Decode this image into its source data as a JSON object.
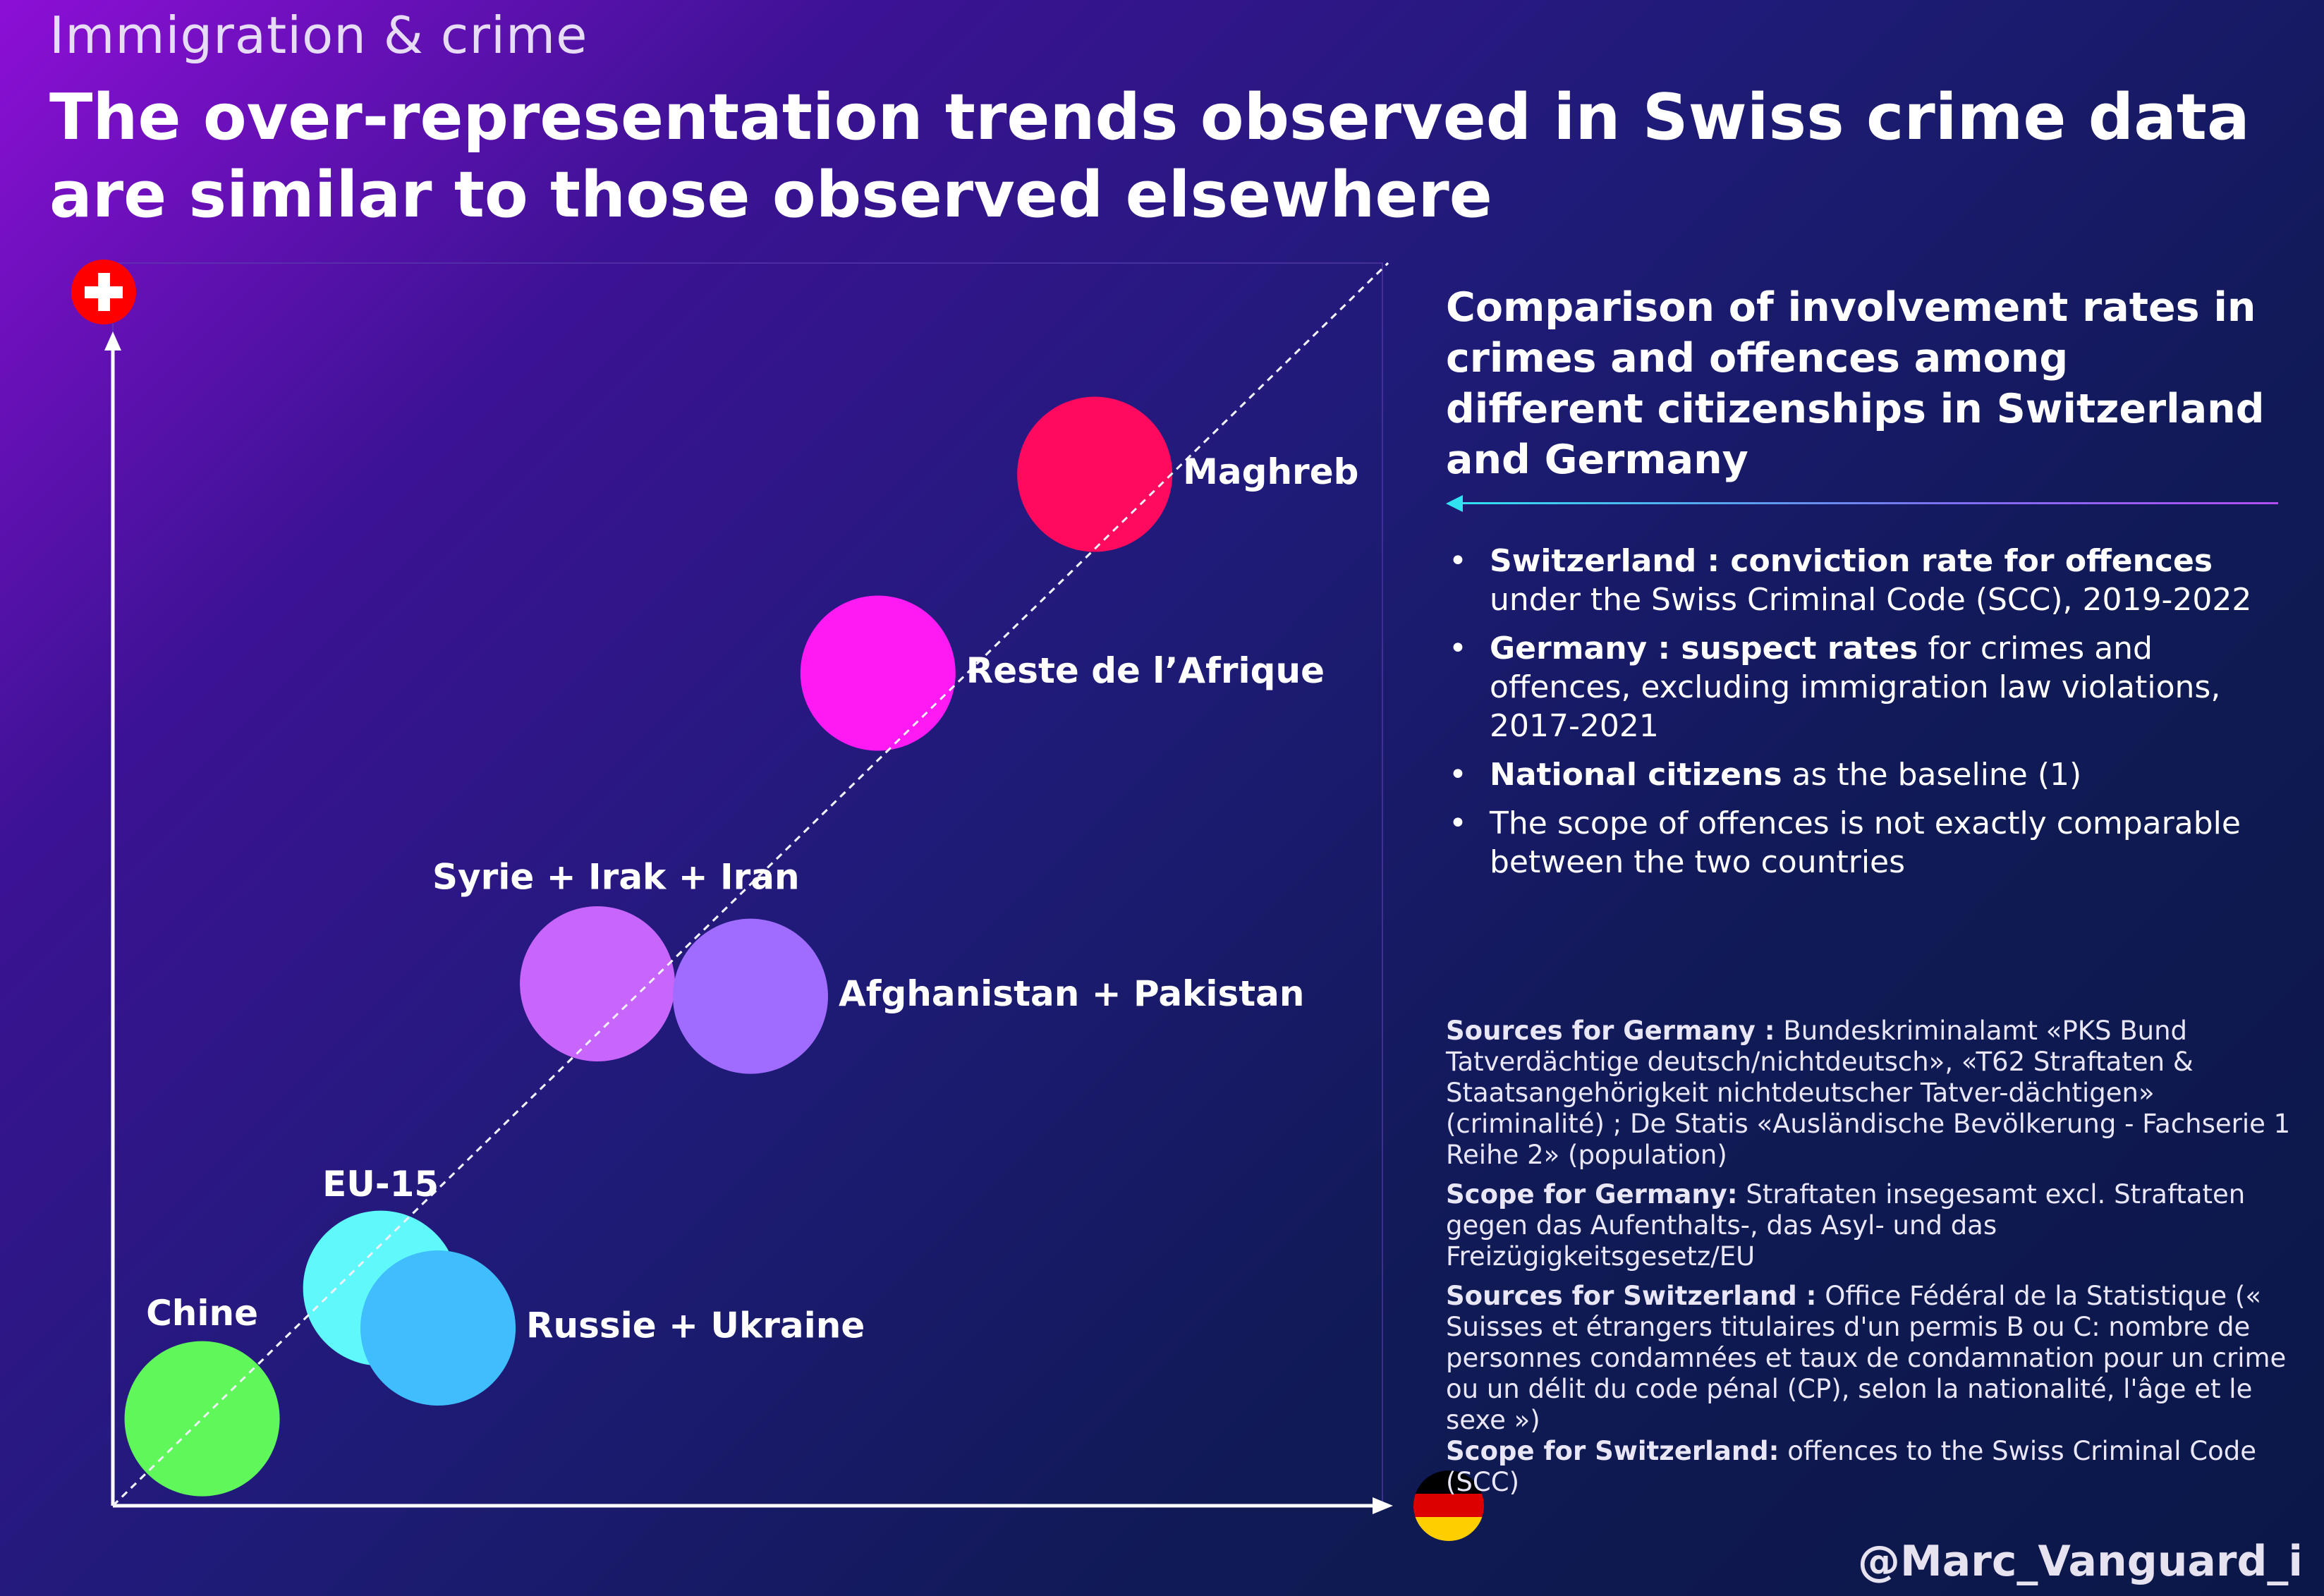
{
  "header": {
    "kicker": "Immigration & crime",
    "headline": "The over-representation trends observed in Swiss crime data are similar to those observed elsewhere"
  },
  "panel": {
    "title": "Comparison of involvement rates in crimes and offences among different citizenships in Switzerland and Germany",
    "bullets": [
      {
        "bold": "Switzerland :  conviction rate for offences",
        "text": " under the Swiss Criminal Code (SCC), 2019-2022"
      },
      {
        "bold": "Germany : suspect rates",
        "text": " for crimes and offences, excluding immigration law violations, 2017-2021"
      },
      {
        "bold": "National citizens",
        "text": " as the baseline (1)"
      },
      {
        "bold": "",
        "text": "The scope of offences is not exactly comparable between the two countries"
      }
    ]
  },
  "sources": [
    {
      "bold": "Sources for Germany :",
      "text": " Bundeskriminalamt «PKS Bund Tatverdächtige deutsch/nichtdeutsch», «T62 Straftaten & Staatsangehörigkeit nichtdeutscher Tatver-dächtigen» (criminalité) ; De Statis «Ausländische Bevölkerung - Fachserie 1 Reihe 2» (population)"
    },
    {
      "bold": "Scope for Germany:",
      "text": " Straftaten insegesamt excl. Straftaten gegen das Aufenthalts-, das Asyl- und das Freizügigkeitsgesetz/EU"
    },
    {
      "bold": "Sources  for Switzerland :",
      "text": " Office Fédéral de la Statistique (« Suisses et étrangers titulaires d'un permis B ou C: nombre de personnes condamnées et taux de condamnation pour un crime ou un délit du code pénal (CP), selon la nationalité, l'âge et le sexe »)"
    },
    {
      "bold": "Scope for Switzerland:",
      "text": " offences to the Swiss Criminal Code (SCC)"
    }
  ],
  "handle": "@Marc_Vanguard_i",
  "colors": {
    "maghreb": "#ff0a5e",
    "reste_afrique": "#ff19f2",
    "syrie": "#c865fb",
    "afghanistan": "#a06cff",
    "eu15": "#5ff9fb",
    "russie": "#3fbdfc",
    "chine": "#5ff75a"
  },
  "icons": {
    "y_axis": "swiss-flag-icon",
    "x_axis": "german-flag-icon"
  },
  "chart_data": {
    "type": "scatter",
    "title": "",
    "xlabel": "",
    "ylabel": "",
    "xlim": [
      0,
      1
    ],
    "ylim": [
      0,
      1
    ],
    "grid": false,
    "reference_line": "diagonal y = x",
    "points": [
      {
        "label": "Maghreb",
        "x": 0.77,
        "y": 0.83,
        "color": "#ff0a5e"
      },
      {
        "label": "Reste de l’Afrique",
        "x": 0.6,
        "y": 0.67,
        "color": "#ff19f2"
      },
      {
        "label": "Syrie + Irak + Iran",
        "x": 0.38,
        "y": 0.42,
        "color": "#c865fb"
      },
      {
        "label": "Afghanistan + Pakistan",
        "x": 0.5,
        "y": 0.41,
        "color": "#a06cff"
      },
      {
        "label": "EU-15",
        "x": 0.21,
        "y": 0.175,
        "color": "#5ff9fb"
      },
      {
        "label": "Russie + Ukraine",
        "x": 0.255,
        "y": 0.143,
        "color": "#3fbdfc"
      },
      {
        "label": "Chine",
        "x": 0.07,
        "y": 0.07,
        "color": "#5ff75a"
      }
    ]
  }
}
